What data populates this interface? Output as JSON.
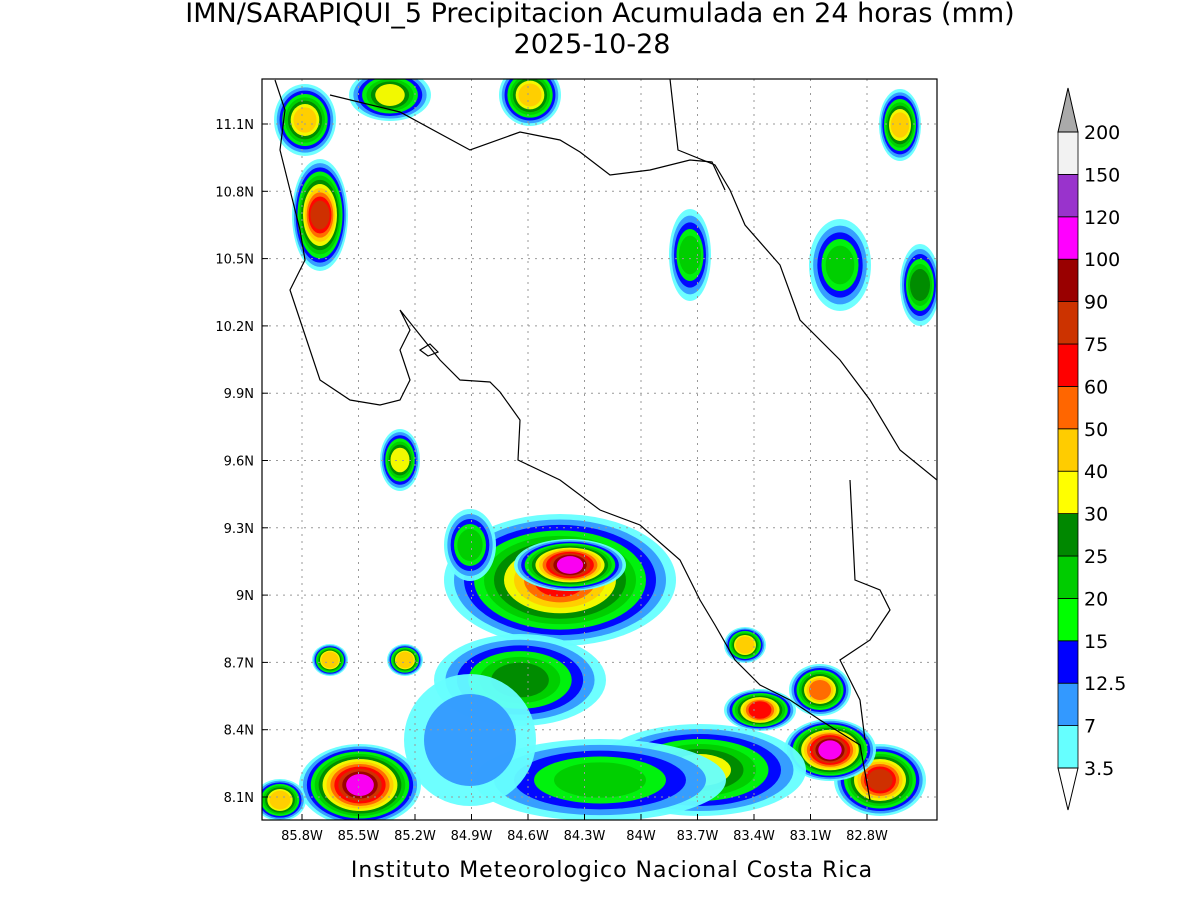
{
  "header": {
    "title": "IMN/SARAPIQUI_5 Precipitacion Acumulada en 24 horas (mm)",
    "date": "2025-10-28"
  },
  "map": {
    "lat_ticks": [
      "11.1N",
      "10.8N",
      "10.5N",
      "10.2N",
      "9.9N",
      "9.6N",
      "9.3N",
      "9N",
      "8.7N",
      "8.4N",
      "8.1N"
    ],
    "lon_ticks": [
      "85.8W",
      "85.5W",
      "85.2W",
      "84.9W",
      "84.6W",
      "84.3W",
      "84W",
      "83.7W",
      "83.4W",
      "83.1W",
      "82.8W"
    ]
  },
  "colorbar": {
    "levels": [
      "3.5",
      "7",
      "12.5",
      "15",
      "20",
      "25",
      "30",
      "40",
      "50",
      "60",
      "75",
      "90",
      "100",
      "120",
      "150",
      "200"
    ],
    "colors": [
      "#66ffff",
      "#3399ff",
      "#0000ff",
      "#00ff00",
      "#00cc00",
      "#008800",
      "#ffff00",
      "#ffcc00",
      "#ff6600",
      "#ff0000",
      "#cc3300",
      "#990000",
      "#ff00ff",
      "#9933cc",
      "#f2f2f2"
    ],
    "under_color": "#ffffff",
    "over_color": "#aaaaaa"
  },
  "footer": {
    "credit": "Instituto Meteorologico Nacional Costa Rica"
  }
}
